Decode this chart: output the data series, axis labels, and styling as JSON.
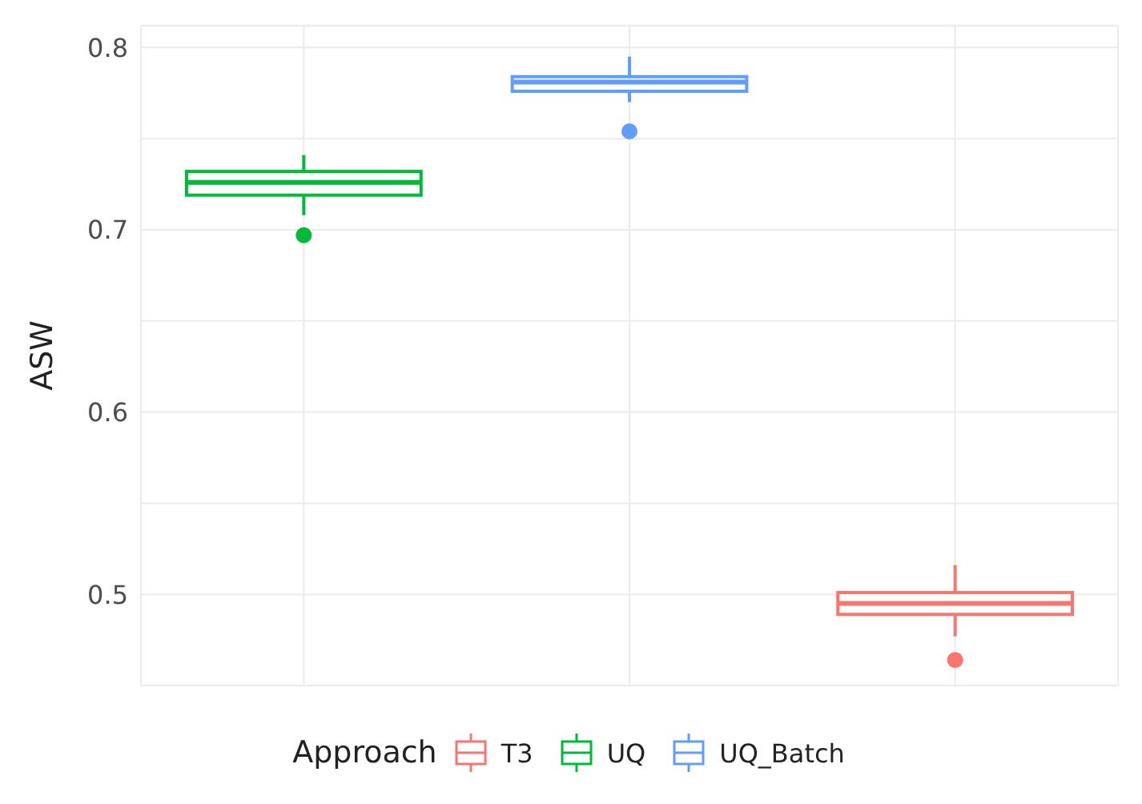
{
  "chart_data": {
    "type": "box",
    "ylabel": "ASW",
    "legend_title": "Approach",
    "categories": [
      null,
      null,
      null
    ],
    "series": [
      {
        "name": "T3",
        "color": "#f8766d",
        "boxes": [
          null,
          null,
          {
            "low": 0.477,
            "q1": 0.489,
            "median": 0.495,
            "q3": 0.501,
            "high": 0.516,
            "outliers": [
              0.464
            ]
          }
        ]
      },
      {
        "name": "UQ",
        "color": "#00ba38",
        "boxes": [
          {
            "low": 0.708,
            "q1": 0.719,
            "median": 0.726,
            "q3": 0.732,
            "high": 0.741,
            "outliers": [
              0.697
            ]
          },
          null,
          null
        ]
      },
      {
        "name": "UQ_Batch",
        "color": "#619cff",
        "boxes": [
          null,
          {
            "low": 0.77,
            "q1": 0.776,
            "median": 0.781,
            "q3": 0.784,
            "high": 0.795,
            "outliers": [
              0.754
            ]
          },
          null
        ]
      }
    ],
    "ylim": [
      0.45,
      0.812
    ],
    "yticks": [
      0.5,
      {
        "value": 0.55,
        "label": null
      },
      0.6,
      {
        "value": 0.65,
        "label": null
      },
      0.7,
      {
        "value": 0.75,
        "label": null
      },
      0.8
    ],
    "grid": true,
    "legend": "bottom",
    "tick_labels": "y"
  }
}
